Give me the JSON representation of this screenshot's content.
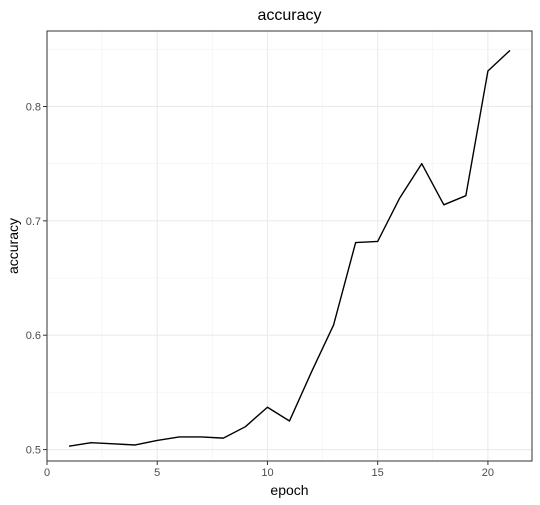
{
  "chart_data": {
    "type": "line",
    "title": "accuracy",
    "xlabel": "epoch",
    "ylabel": "accuracy",
    "xlim": [
      0,
      22
    ],
    "ylim": [
      0.49,
      0.866
    ],
    "x_ticks": [
      0,
      5,
      10,
      15,
      20
    ],
    "y_ticks": [
      0.5,
      0.6,
      0.7,
      0.8
    ],
    "x_tick_labels": [
      "0",
      "5",
      "10",
      "15",
      "20"
    ],
    "y_tick_labels": [
      "0.5",
      "0.6",
      "0.7",
      "0.8"
    ],
    "grid": true,
    "x": [
      1,
      2,
      3,
      4,
      5,
      6,
      7,
      8,
      9,
      10,
      11,
      12,
      13,
      14,
      15,
      16,
      17,
      18,
      19,
      20,
      21
    ],
    "series": [
      {
        "values": [
          0.503,
          0.506,
          0.505,
          0.504,
          0.508,
          0.511,
          0.511,
          0.51,
          0.52,
          0.537,
          0.525,
          0.568,
          0.609,
          0.681,
          0.682,
          0.72,
          0.75,
          0.714,
          0.722,
          0.831,
          0.849
        ],
        "color": "#000000"
      }
    ]
  }
}
